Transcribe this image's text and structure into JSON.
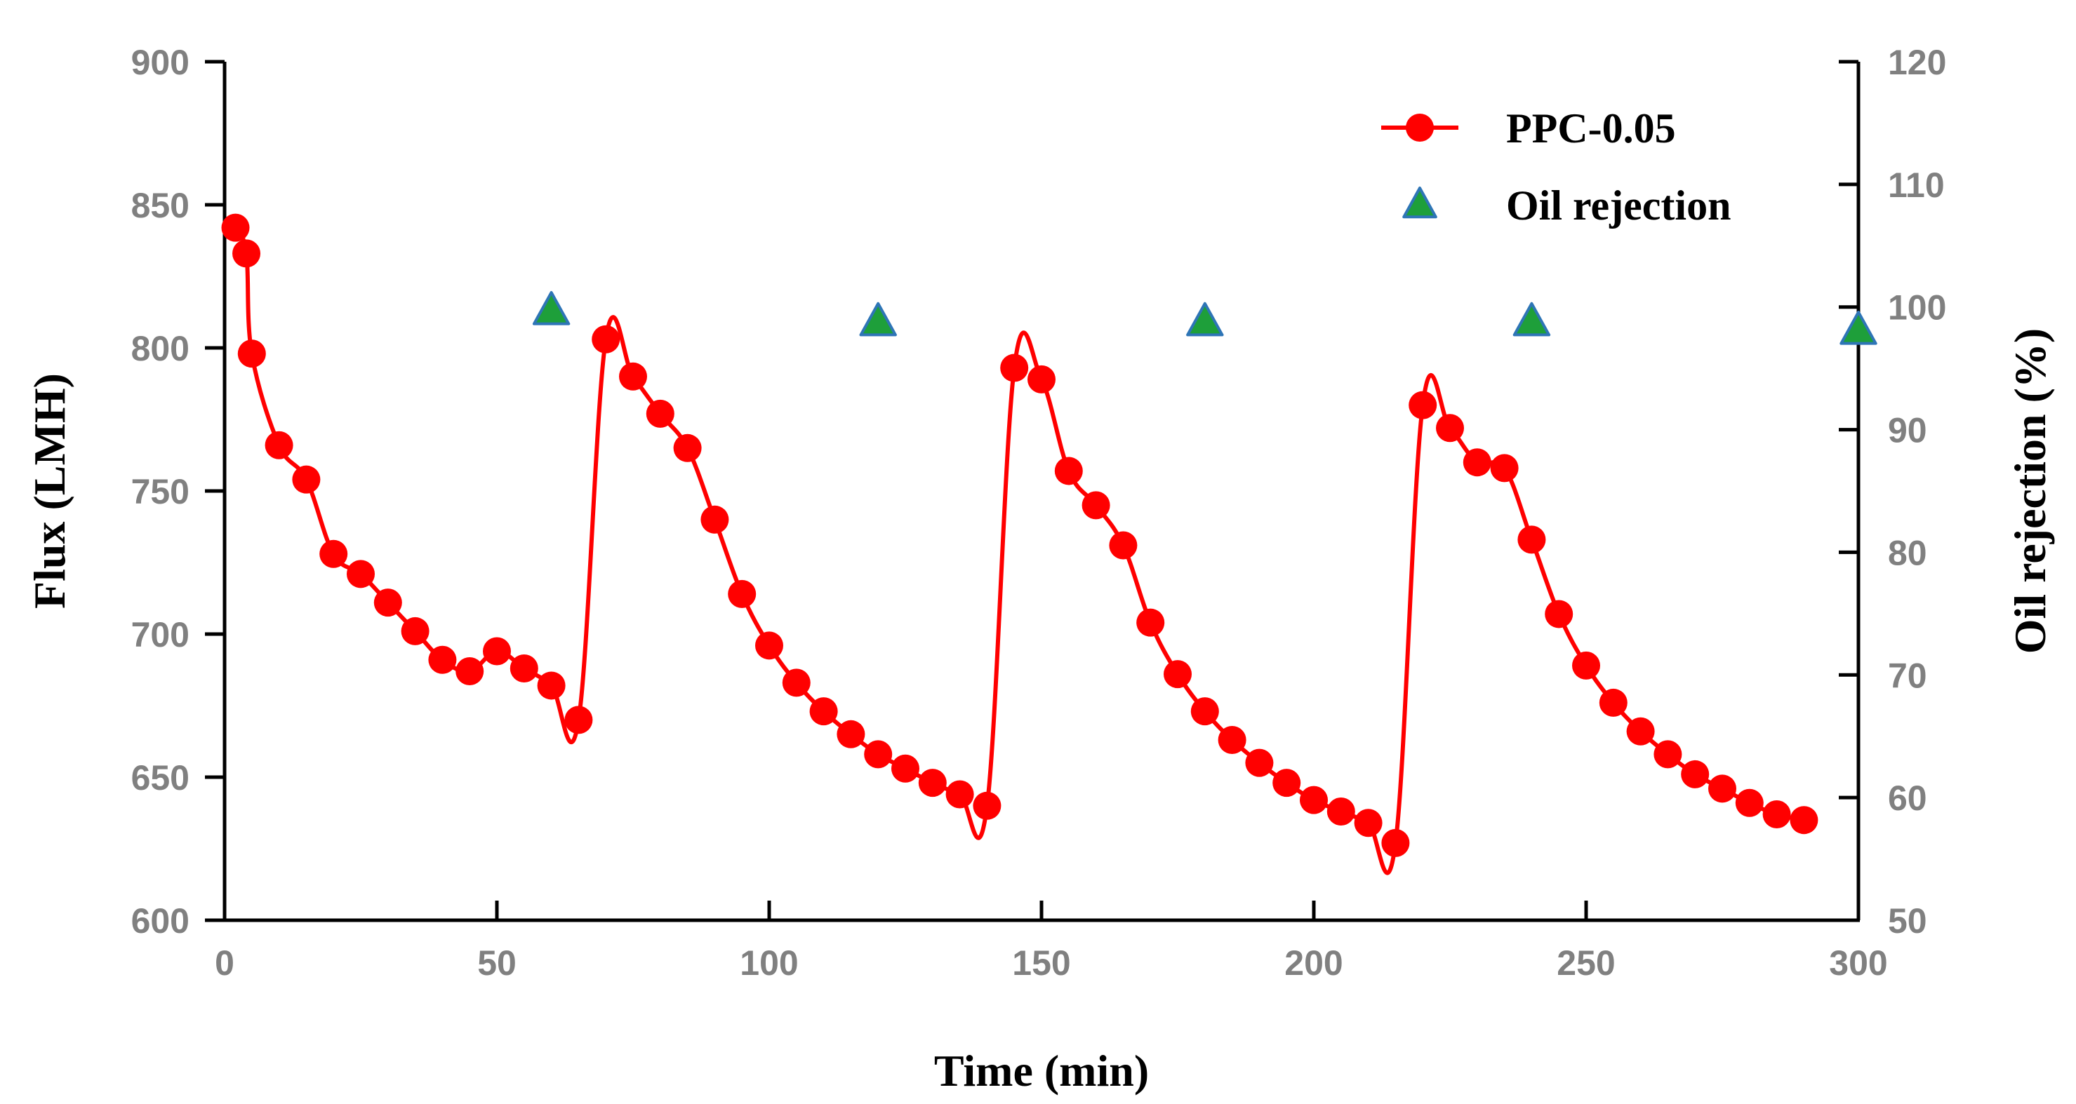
{
  "chart_data": {
    "type": "line",
    "title": "",
    "xlabel": "Time (min)",
    "ylabel": "Flux (LMH)",
    "y2label": "Oil rejection (%)",
    "xlim": [
      0,
      300
    ],
    "ylim": [
      600,
      900
    ],
    "y2lim": [
      50,
      120
    ],
    "x_ticks": [
      0,
      50,
      100,
      150,
      200,
      250,
      300
    ],
    "y_ticks": [
      600,
      650,
      700,
      750,
      800,
      850,
      900
    ],
    "y2_ticks": [
      50,
      60,
      70,
      80,
      90,
      100,
      110,
      120
    ],
    "grid": false,
    "legend_position": "top-right",
    "series": [
      {
        "name": "PPC-0.05",
        "axis": "left",
        "color": "#ff0000",
        "marker": "circle",
        "x": [
          2,
          4,
          5,
          10,
          15,
          20,
          25,
          30,
          35,
          40,
          45,
          50,
          55,
          60,
          65,
          70,
          75,
          80,
          85,
          90,
          95,
          100,
          105,
          110,
          115,
          120,
          125,
          130,
          135,
          140,
          145,
          150,
          155,
          160,
          165,
          170,
          175,
          180,
          185,
          190,
          195,
          200,
          205,
          210,
          215,
          220,
          225,
          230,
          235,
          240,
          245,
          250,
          255,
          260,
          265,
          270,
          275,
          280,
          285,
          290
        ],
        "y": [
          842,
          833,
          798,
          766,
          754,
          728,
          721,
          711,
          701,
          691,
          687,
          694,
          688,
          682,
          670,
          803,
          790,
          777,
          765,
          740,
          714,
          696,
          683,
          673,
          665,
          658,
          653,
          648,
          644,
          640,
          793,
          789,
          757,
          745,
          731,
          704,
          686,
          673,
          663,
          655,
          648,
          642,
          638,
          634,
          627,
          780,
          772,
          760,
          758,
          733,
          707,
          689,
          676,
          666,
          658,
          651,
          646,
          641,
          637,
          635
        ]
      },
      {
        "name": "Oil rejection",
        "axis": "right",
        "color": "#1e9f3a",
        "edge_color": "#2e75b6",
        "marker": "triangle",
        "x": [
          60,
          120,
          180,
          240,
          300
        ],
        "y": [
          99.7,
          98.8,
          98.8,
          98.8,
          98.1
        ]
      }
    ]
  }
}
